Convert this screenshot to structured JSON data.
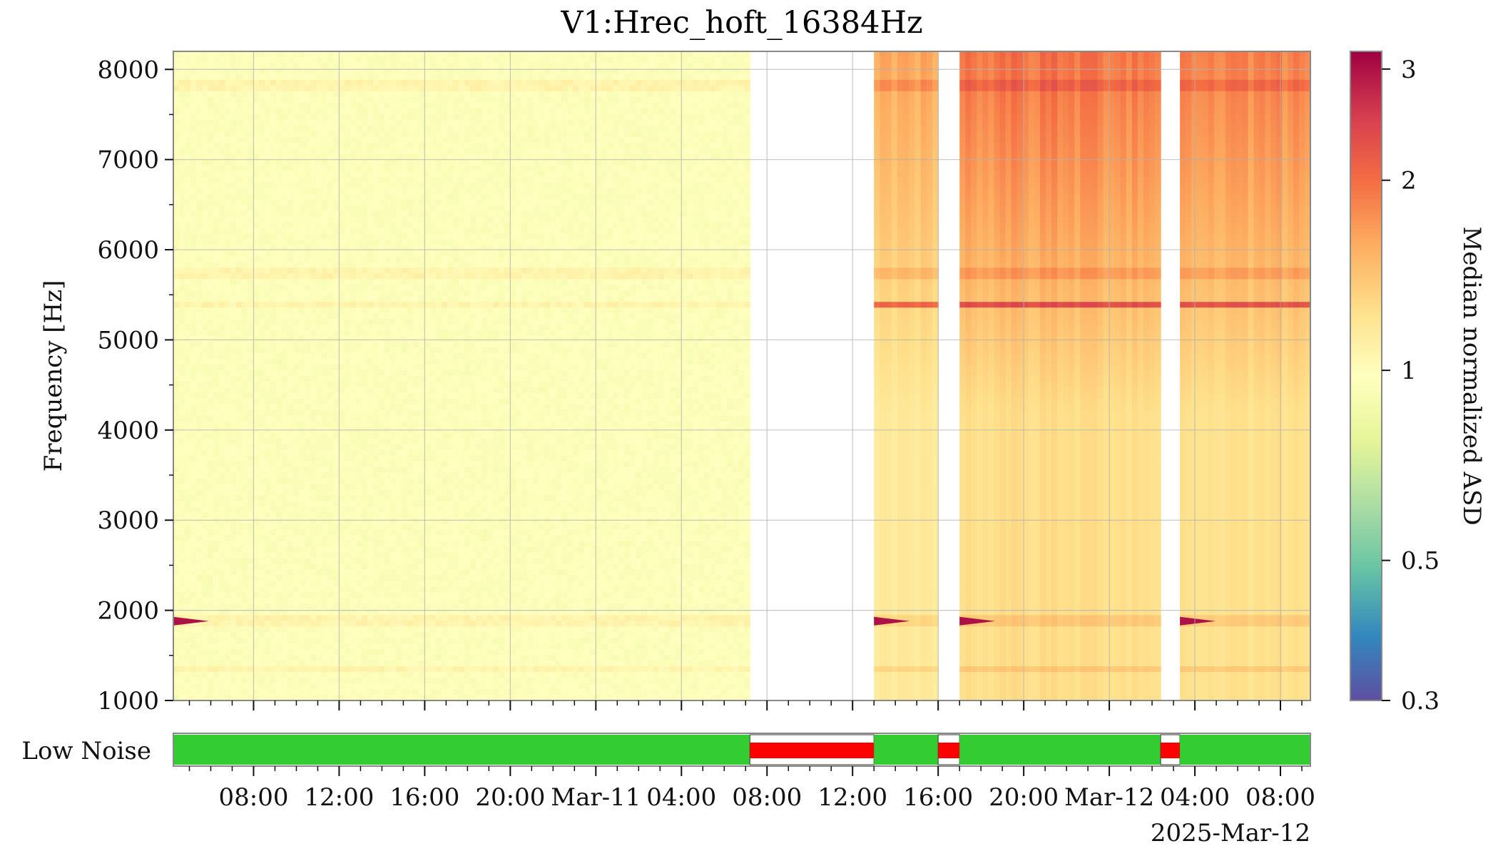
{
  "chart_data": [
    {
      "type": "heatmap",
      "title": "V1:Hrec_hoft_16384Hz",
      "xlabel": "",
      "ylabel": "Frequency [Hz]",
      "ylim": [
        1000,
        8200
      ],
      "yticks": [
        "1000",
        "2000",
        "3000",
        "4000",
        "5000",
        "6000",
        "7000",
        "8000"
      ],
      "xlim": [
        "2025-03-10 04:15",
        "2025-03-12 09:25"
      ],
      "xticks": [
        "08:00",
        "12:00",
        "16:00",
        "20:00",
        "Mar-11",
        "04:00",
        "08:00",
        "12:00",
        "16:00",
        "20:00",
        "Mar-12",
        "04:00",
        "08:00"
      ],
      "xtick_hours": [
        8,
        12,
        16,
        20,
        24,
        28,
        32,
        36,
        40,
        44,
        48,
        52,
        56
      ],
      "epoch_label": "2025-Mar-12",
      "grid": true,
      "colorbar": {
        "label": "Median normalized ASD",
        "scale": "log",
        "range": [
          0.3,
          3.2
        ],
        "ticks": [
          "0.3",
          "0.5",
          "1",
          "2",
          "3"
        ],
        "tick_values": [
          0.3,
          0.5,
          1,
          2,
          3
        ],
        "colormap": "Spectral_r"
      },
      "data_gaps_hours": [
        [
          31.2,
          37.0
        ],
        [
          40.0,
          41.0
        ],
        [
          50.4,
          51.3
        ]
      ],
      "segments_hours": [
        {
          "start": 4.25,
          "end": 31.2,
          "level": 0.95
        },
        {
          "start": 37.0,
          "end": 40.0,
          "level": 1.35
        },
        {
          "start": 41.0,
          "end": 50.4,
          "level": 1.55
        },
        {
          "start": 51.3,
          "end": 57.4,
          "level": 1.5
        }
      ],
      "spectral_lines_hz": [
        {
          "freq": 7820,
          "note": "line present through most of span"
        },
        {
          "freq": 5750,
          "note": "line"
        },
        {
          "freq": 5380,
          "note": "strong excess in later segments"
        },
        {
          "freq": 1880,
          "note": "strong feature at segment starts"
        },
        {
          "freq": 1330,
          "note": "line"
        }
      ]
    },
    {
      "type": "bar",
      "title": "",
      "ylabel": "Low Noise",
      "segments_hours": [
        {
          "start": 4.25,
          "end": 31.2,
          "state": "active"
        },
        {
          "start": 31.2,
          "end": 37.0,
          "state": "inactive"
        },
        {
          "start": 37.0,
          "end": 40.0,
          "state": "active"
        },
        {
          "start": 40.0,
          "end": 41.0,
          "state": "inactive"
        },
        {
          "start": 41.0,
          "end": 50.4,
          "state": "active"
        },
        {
          "start": 50.4,
          "end": 51.3,
          "state": "inactive"
        },
        {
          "start": 51.3,
          "end": 57.4,
          "state": "active"
        }
      ],
      "colors": {
        "active": "#33cc33",
        "inactive": "#ff0000"
      }
    }
  ]
}
